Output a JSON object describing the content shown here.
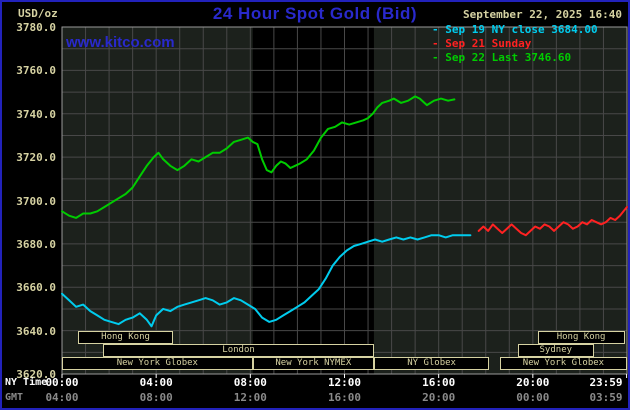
{
  "header": {
    "units_label": "USD/oz",
    "title": "24 Hour Spot Gold (Bid)",
    "datetime": "September 22, 2025 16:40",
    "watermark": "www.kitco.com"
  },
  "colors": {
    "accent_blue": "#2929cc",
    "border_blue": "#2222bb",
    "tan": "#d6d2a2",
    "cyan": "#00ccee",
    "red": "#ff2222",
    "green": "#00cc00",
    "white": "#ffffff",
    "gray": "#8a8a8a",
    "grid": "#484848",
    "plot_bg": "#1c211c",
    "band_bg": "#000000",
    "axis_border": "#9a9a9a"
  },
  "axes": {
    "ny_label": "NY Time",
    "gmt_label": "GMT",
    "ny_ticks": [
      "00:00",
      "04:00",
      "08:00",
      "12:00",
      "16:00",
      "20:00",
      "23:59"
    ],
    "gmt_ticks": [
      "04:00",
      "08:00",
      "12:00",
      "16:00",
      "20:00",
      "00:00",
      "03:59"
    ],
    "tick_hours": [
      0,
      4,
      8,
      12,
      16,
      20,
      23.983
    ],
    "y_ticks": [
      3780,
      3760,
      3740,
      3720,
      3700,
      3680,
      3660,
      3640,
      3620
    ]
  },
  "legend": [
    {
      "marker": "-",
      "label": "Sep 19 NY close 3684.00",
      "color_key": "cyan"
    },
    {
      "marker": "-",
      "label": "Sep 21 Sunday",
      "color_key": "red"
    },
    {
      "marker": "-",
      "label": "Sep 22 Last 3746.60",
      "color_key": "green"
    }
  ],
  "sessions": [
    {
      "label": "Hong Kong",
      "row": 0,
      "from": 0.7,
      "to": 4.7
    },
    {
      "label": "Hong Kong",
      "row": 0,
      "from": 20.2,
      "to": 23.9
    },
    {
      "label": "London",
      "row": 1,
      "from": 1.75,
      "to": 13.25
    },
    {
      "label": "Sydney",
      "row": 1,
      "from": 19.35,
      "to": 22.6
    },
    {
      "label": "New York Globex",
      "row": 2,
      "from": 0,
      "to": 8.1
    },
    {
      "label": "New York NYMEX",
      "row": 2,
      "from": 8.1,
      "to": 13.25
    },
    {
      "label": "NY Globex",
      "row": 2,
      "from": 13.25,
      "to": 18.15
    },
    {
      "label": "New York Globex",
      "row": 2,
      "from": 18.6,
      "to": 24
    }
  ],
  "chart_data": {
    "type": "line",
    "title": "24 Hour Spot Gold (Bid)",
    "ylabel": "USD/oz",
    "xlabel": "NY Time (hours 00:00-23:59)",
    "ylim": [
      3620,
      3780
    ],
    "y_tick_step": 20,
    "xlim_hours": [
      0,
      24
    ],
    "grid": true,
    "legend_position": "top-right",
    "shaded_region_hours": [
      8.1,
      13.25
    ],
    "series": [
      {
        "name": "Sep 19 NY close 3684.00",
        "color_key": "cyan",
        "points": [
          [
            0,
            3657
          ],
          [
            0.3,
            3654
          ],
          [
            0.6,
            3651
          ],
          [
            0.9,
            3652
          ],
          [
            1.2,
            3649
          ],
          [
            1.5,
            3647
          ],
          [
            1.8,
            3645
          ],
          [
            2.1,
            3644
          ],
          [
            2.4,
            3643
          ],
          [
            2.7,
            3645
          ],
          [
            3,
            3646
          ],
          [
            3.3,
            3648
          ],
          [
            3.6,
            3645
          ],
          [
            3.8,
            3642
          ],
          [
            4,
            3647
          ],
          [
            4.3,
            3650
          ],
          [
            4.6,
            3649
          ],
          [
            4.9,
            3651
          ],
          [
            5.2,
            3652
          ],
          [
            5.5,
            3653
          ],
          [
            5.8,
            3654
          ],
          [
            6.1,
            3655
          ],
          [
            6.4,
            3654
          ],
          [
            6.7,
            3652
          ],
          [
            7,
            3653
          ],
          [
            7.3,
            3655
          ],
          [
            7.6,
            3654
          ],
          [
            7.9,
            3652
          ],
          [
            8.2,
            3650
          ],
          [
            8.5,
            3646
          ],
          [
            8.8,
            3644
          ],
          [
            9.1,
            3645
          ],
          [
            9.4,
            3647
          ],
          [
            9.7,
            3649
          ],
          [
            10,
            3651
          ],
          [
            10.3,
            3653
          ],
          [
            10.6,
            3656
          ],
          [
            10.9,
            3659
          ],
          [
            11.2,
            3664
          ],
          [
            11.5,
            3670
          ],
          [
            11.8,
            3674
          ],
          [
            12.1,
            3677
          ],
          [
            12.4,
            3679
          ],
          [
            12.7,
            3680
          ],
          [
            13,
            3681
          ],
          [
            13.3,
            3682
          ],
          [
            13.6,
            3681
          ],
          [
            13.9,
            3682
          ],
          [
            14.2,
            3683
          ],
          [
            14.5,
            3682
          ],
          [
            14.8,
            3683
          ],
          [
            15.1,
            3682
          ],
          [
            15.4,
            3683
          ],
          [
            15.7,
            3684
          ],
          [
            16,
            3684
          ],
          [
            16.3,
            3683
          ],
          [
            16.6,
            3684
          ],
          [
            16.9,
            3684
          ],
          [
            17.2,
            3684
          ],
          [
            17.35,
            3684
          ]
        ]
      },
      {
        "name": "Sep 21 Sunday",
        "color_key": "red",
        "points": [
          [
            17.7,
            3686
          ],
          [
            17.9,
            3688
          ],
          [
            18.1,
            3686
          ],
          [
            18.3,
            3689
          ],
          [
            18.5,
            3687
          ],
          [
            18.7,
            3685
          ],
          [
            18.9,
            3687
          ],
          [
            19.1,
            3689
          ],
          [
            19.3,
            3687
          ],
          [
            19.5,
            3685
          ],
          [
            19.7,
            3684
          ],
          [
            19.9,
            3686
          ],
          [
            20.1,
            3688
          ],
          [
            20.3,
            3687
          ],
          [
            20.5,
            3689
          ],
          [
            20.7,
            3688
          ],
          [
            20.9,
            3686
          ],
          [
            21.1,
            3688
          ],
          [
            21.3,
            3690
          ],
          [
            21.5,
            3689
          ],
          [
            21.7,
            3687
          ],
          [
            21.9,
            3688
          ],
          [
            22.1,
            3690
          ],
          [
            22.3,
            3689
          ],
          [
            22.5,
            3691
          ],
          [
            22.7,
            3690
          ],
          [
            22.9,
            3689
          ],
          [
            23.1,
            3690
          ],
          [
            23.3,
            3692
          ],
          [
            23.5,
            3691
          ],
          [
            23.7,
            3693
          ],
          [
            23.85,
            3695
          ],
          [
            24,
            3697
          ]
        ]
      },
      {
        "name": "Sep 22 Last 3746.60",
        "color_key": "green",
        "points": [
          [
            0,
            3695
          ],
          [
            0.3,
            3693
          ],
          [
            0.6,
            3692
          ],
          [
            0.9,
            3694
          ],
          [
            1.2,
            3694
          ],
          [
            1.5,
            3695
          ],
          [
            1.8,
            3697
          ],
          [
            2.1,
            3699
          ],
          [
            2.4,
            3701
          ],
          [
            2.7,
            3703
          ],
          [
            3,
            3706
          ],
          [
            3.3,
            3711
          ],
          [
            3.6,
            3716
          ],
          [
            3.9,
            3720
          ],
          [
            4.1,
            3722
          ],
          [
            4.3,
            3719
          ],
          [
            4.6,
            3716
          ],
          [
            4.9,
            3714
          ],
          [
            5.2,
            3716
          ],
          [
            5.5,
            3719
          ],
          [
            5.8,
            3718
          ],
          [
            6.1,
            3720
          ],
          [
            6.4,
            3722
          ],
          [
            6.7,
            3722
          ],
          [
            7,
            3724
          ],
          [
            7.3,
            3727
          ],
          [
            7.6,
            3728
          ],
          [
            7.9,
            3729
          ],
          [
            8.1,
            3727
          ],
          [
            8.3,
            3726
          ],
          [
            8.5,
            3719
          ],
          [
            8.7,
            3714
          ],
          [
            8.9,
            3713
          ],
          [
            9.1,
            3716
          ],
          [
            9.3,
            3718
          ],
          [
            9.5,
            3717
          ],
          [
            9.7,
            3715
          ],
          [
            9.9,
            3716
          ],
          [
            10.1,
            3717
          ],
          [
            10.4,
            3719
          ],
          [
            10.7,
            3723
          ],
          [
            11,
            3729
          ],
          [
            11.3,
            3733
          ],
          [
            11.6,
            3734
          ],
          [
            11.9,
            3736
          ],
          [
            12.2,
            3735
          ],
          [
            12.5,
            3736
          ],
          [
            12.8,
            3737
          ],
          [
            13,
            3738
          ],
          [
            13.2,
            3740
          ],
          [
            13.4,
            3743
          ],
          [
            13.6,
            3745
          ],
          [
            13.9,
            3746
          ],
          [
            14.1,
            3747
          ],
          [
            14.4,
            3745
          ],
          [
            14.7,
            3746
          ],
          [
            15,
            3748
          ],
          [
            15.2,
            3747
          ],
          [
            15.5,
            3744
          ],
          [
            15.8,
            3746
          ],
          [
            16.1,
            3747
          ],
          [
            16.4,
            3746
          ],
          [
            16.67,
            3746.6
          ]
        ]
      }
    ]
  }
}
